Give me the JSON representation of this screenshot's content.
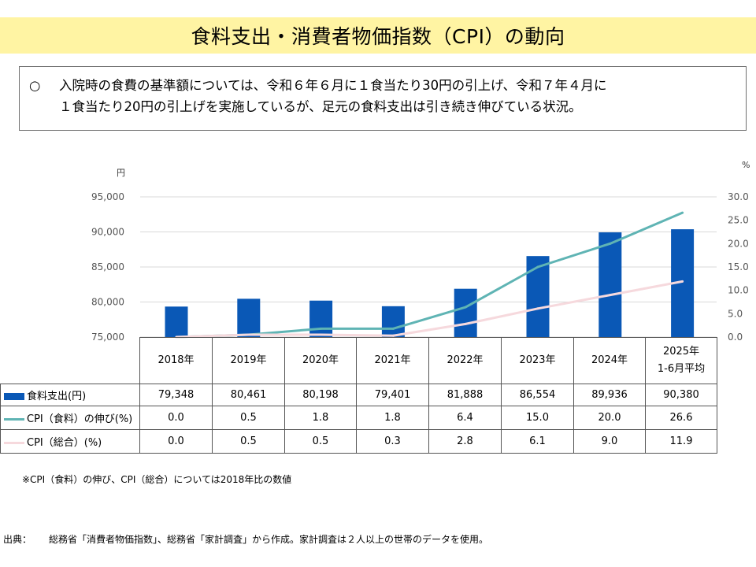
{
  "title": "食料支出・消費者物価指数（CPI）の動向",
  "note": {
    "bullet": "○",
    "line1": "入院時の食費の基準額については、令和６年６月に１食当たり30円の引上げ、令和７年４月に",
    "line2": "１食当たり20円の引上げを実施しているが、足元の食料支出は引き続き伸びている状況。"
  },
  "chart_data": {
    "type": "bar+line",
    "left_unit": "円",
    "right_unit": "%",
    "categories": [
      "2018年",
      "2019年",
      "2020年",
      "2021年",
      "2022年",
      "2023年",
      "2024年",
      "2025年\n1-6月平均"
    ],
    "y_left": {
      "min": 75000,
      "max": 95000,
      "ticks": [
        "75,000",
        "80,000",
        "85,000",
        "90,000",
        "95,000"
      ]
    },
    "y_right": {
      "min": 0,
      "max": 30,
      "ticks": [
        "0.0",
        "5.0",
        "10.0",
        "15.0",
        "20.0",
        "25.0",
        "30.0"
      ]
    },
    "series": [
      {
        "name": "食料支出(円)",
        "kind": "bar",
        "axis": "left",
        "color": "#0a58b6",
        "values": [
          79348,
          80461,
          80198,
          79401,
          81888,
          86554,
          89936,
          90380
        ],
        "labels": [
          "79,348",
          "80,461",
          "80,198",
          "79,401",
          "81,888",
          "86,554",
          "89,936",
          "90,380"
        ]
      },
      {
        "name": "CPI（食料）の伸び(%)",
        "kind": "line",
        "axis": "right",
        "color": "#5fb4b4",
        "values": [
          0.0,
          0.5,
          1.8,
          1.8,
          6.4,
          15.0,
          20.0,
          26.6
        ],
        "labels": [
          "0.0",
          "0.5",
          "1.8",
          "1.8",
          "6.4",
          "15.0",
          "20.0",
          "26.6"
        ]
      },
      {
        "name": "CPI（総合）(%)",
        "kind": "line",
        "axis": "right",
        "color": "#f6d9dd",
        "values": [
          0.0,
          0.5,
          0.5,
          0.3,
          2.8,
          6.1,
          9.0,
          11.9
        ],
        "labels": [
          "0.0",
          "0.5",
          "0.5",
          "0.3",
          "2.8",
          "6.1",
          "9.0",
          "11.9"
        ]
      }
    ],
    "grid": true
  },
  "footnote": "※CPI（食料）の伸び、CPI（総合）については2018年比の数値",
  "source": {
    "label": "出典：",
    "text": "総務省「消費者物価指数」、総務省「家計調査」から作成。家計調査は２人以上の世帯のデータを使用。"
  }
}
